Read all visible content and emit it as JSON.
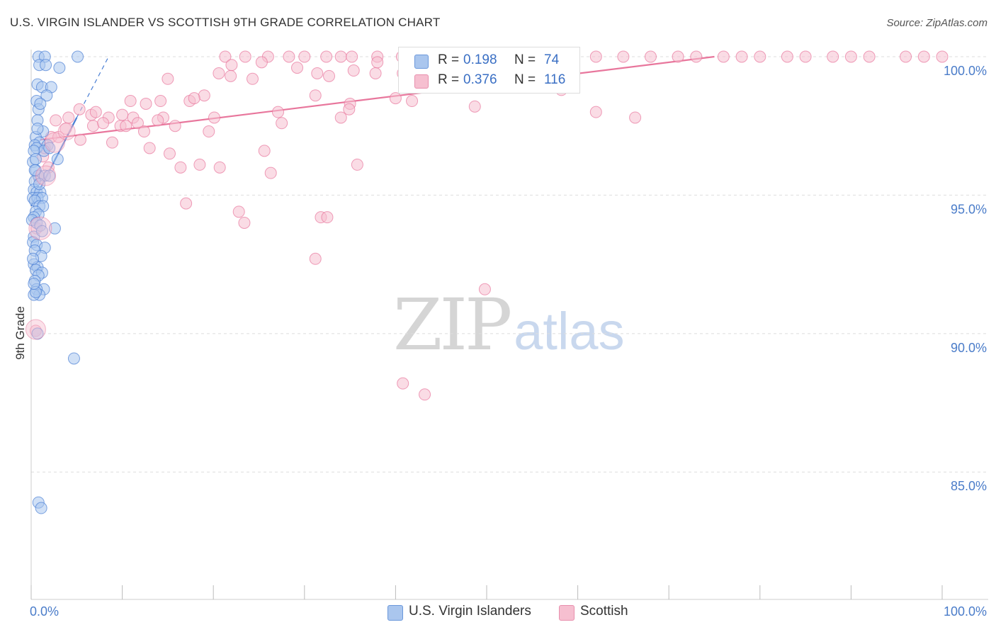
{
  "title": "U.S. VIRGIN ISLANDER VS SCOTTISH 9TH GRADE CORRELATION CHART",
  "source": "Source: ZipAtlas.com",
  "watermark": {
    "part1": "ZIP",
    "part2": "atlas"
  },
  "legend": {
    "series1": {
      "r_label": "R = ",
      "r_value": "0.198",
      "n_label": "N = ",
      "n_value": "74"
    },
    "series2": {
      "r_label": "R = ",
      "r_value": "0.376",
      "n_label": "N = ",
      "n_value": "116"
    }
  },
  "bottom_legend": {
    "series1": "U.S. Virgin Islanders",
    "series2": "Scottish"
  },
  "colors": {
    "blue": "#4a7fd4",
    "blue_fill": "#aac6ee",
    "pink": "#e8769c",
    "pink_fill": "#f6bfd0",
    "grid": "#dddddd",
    "tick": "#4a7cc9"
  },
  "chart_data": {
    "type": "scatter",
    "title": "U.S. VIRGIN ISLANDER VS SCOTTISH 9TH GRADE CORRELATION CHART",
    "xlabel": "",
    "ylabel": "9th Grade",
    "xlim": [
      0,
      100
    ],
    "ylim": [
      80.5,
      100.5
    ],
    "x_tick_labels": [
      "0.0%",
      "100.0%"
    ],
    "y_ticks": [
      85,
      90,
      95,
      100
    ],
    "y_tick_labels": [
      "85.0%",
      "90.0%",
      "95.0%",
      "100.0%"
    ],
    "grid": true,
    "series": [
      {
        "name": "U.S. Virgin Islanders",
        "r": 0.198,
        "n": 74,
        "trend": {
          "x": [
            0.0,
            5.0
          ],
          "y": [
            94.6,
            97.8
          ]
        },
        "trend_ext": {
          "x": [
            5.0,
            8.5
          ],
          "y": [
            97.8,
            100.0
          ]
        },
        "points": [
          [
            0.8,
            100
          ],
          [
            1.5,
            100
          ],
          [
            5.1,
            100
          ],
          [
            0.9,
            99.7
          ],
          [
            1.6,
            99.7
          ],
          [
            3.1,
            99.6
          ],
          [
            0.7,
            99
          ],
          [
            1.2,
            98.9
          ],
          [
            2.2,
            98.9
          ],
          [
            1.7,
            98.6
          ],
          [
            0.6,
            98.4
          ],
          [
            0.8,
            98.1
          ],
          [
            0.7,
            97.7
          ],
          [
            1.3,
            97.3
          ],
          [
            0.5,
            97.1
          ],
          [
            0.9,
            96.9
          ],
          [
            1.8,
            96.8
          ],
          [
            0.4,
            96.8
          ],
          [
            0.6,
            96.7
          ],
          [
            1.4,
            96.6
          ],
          [
            2.0,
            96.7
          ],
          [
            0.3,
            96.6
          ],
          [
            2.9,
            96.3
          ],
          [
            0.2,
            96.2
          ],
          [
            0.5,
            95.9
          ],
          [
            0.8,
            95.7
          ],
          [
            1.5,
            95.7
          ],
          [
            2.0,
            95.7
          ],
          [
            0.4,
            95.5
          ],
          [
            0.3,
            95.2
          ],
          [
            0.6,
            95.1
          ],
          [
            1.0,
            95.1
          ],
          [
            0.2,
            94.9
          ],
          [
            0.7,
            94.9
          ],
          [
            1.2,
            94.9
          ],
          [
            0.4,
            94.8
          ],
          [
            0.9,
            94.6
          ],
          [
            1.3,
            94.6
          ],
          [
            0.5,
            94.4
          ],
          [
            0.8,
            94.3
          ],
          [
            0.3,
            94.2
          ],
          [
            0.1,
            94.1
          ],
          [
            0.6,
            94
          ],
          [
            1.0,
            93.9
          ],
          [
            2.6,
            93.8
          ],
          [
            0.3,
            93.5
          ],
          [
            0.2,
            93.3
          ],
          [
            0.6,
            93.2
          ],
          [
            1.5,
            93.1
          ],
          [
            0.4,
            93
          ],
          [
            1.1,
            92.8
          ],
          [
            0.3,
            92.5
          ],
          [
            0.7,
            92.4
          ],
          [
            0.5,
            92.3
          ],
          [
            1.2,
            92.2
          ],
          [
            0.8,
            92.1
          ],
          [
            0.4,
            91.9
          ],
          [
            1.4,
            91.6
          ],
          [
            0.6,
            91.6
          ],
          [
            0.9,
            91.4
          ],
          [
            0.3,
            91.4
          ],
          [
            0.5,
            91.5
          ],
          [
            0.7,
            90
          ],
          [
            4.7,
            89.1
          ],
          [
            0.8,
            83.9
          ],
          [
            1.1,
            83.7
          ],
          [
            0.5,
            96.3
          ],
          [
            0.9,
            95.4
          ],
          [
            1.2,
            93.7
          ],
          [
            0.2,
            92.7
          ],
          [
            0.4,
            95.9
          ],
          [
            0.7,
            97.4
          ],
          [
            0.3,
            91.8
          ],
          [
            1.0,
            98.3
          ]
        ]
      },
      {
        "name": "Scottish",
        "r": 0.376,
        "n": 116,
        "trend": {
          "x": [
            1.0,
            75.0
          ],
          "y": [
            97.0,
            100.0
          ]
        },
        "points": [
          [
            21.3,
            100
          ],
          [
            23.5,
            100
          ],
          [
            26.0,
            100
          ],
          [
            28.3,
            100
          ],
          [
            30.0,
            100
          ],
          [
            32.4,
            100
          ],
          [
            34.0,
            100
          ],
          [
            35.2,
            100
          ],
          [
            38.0,
            100
          ],
          [
            40.7,
            100
          ],
          [
            42.0,
            100
          ],
          [
            44.5,
            100
          ],
          [
            46.3,
            100
          ],
          [
            48.3,
            100
          ],
          [
            49.0,
            100
          ],
          [
            50.0,
            100
          ],
          [
            52.0,
            100
          ],
          [
            55.0,
            100
          ],
          [
            57.0,
            100
          ],
          [
            59.0,
            100
          ],
          [
            62.0,
            100
          ],
          [
            65.0,
            100
          ],
          [
            68.0,
            100
          ],
          [
            71.0,
            100
          ],
          [
            73.0,
            100
          ],
          [
            76.0,
            100
          ],
          [
            78.0,
            100
          ],
          [
            80.0,
            100
          ],
          [
            83.0,
            100
          ],
          [
            85.0,
            100
          ],
          [
            88.0,
            100
          ],
          [
            90.0,
            100
          ],
          [
            92.0,
            100
          ],
          [
            96.0,
            100
          ],
          [
            98.0,
            100
          ],
          [
            100,
            100
          ],
          [
            22.0,
            99.7
          ],
          [
            25.3,
            99.8
          ],
          [
            20.6,
            99.4
          ],
          [
            31.4,
            99.4
          ],
          [
            29.2,
            99.6
          ],
          [
            35.4,
            99.5
          ],
          [
            37.8,
            99.4
          ],
          [
            40.8,
            99.4
          ],
          [
            21.9,
            99.3
          ],
          [
            24.3,
            99.2
          ],
          [
            32.7,
            99.3
          ],
          [
            15.0,
            99.2
          ],
          [
            38.0,
            99.8
          ],
          [
            49.1,
            98.9
          ],
          [
            31.2,
            98.6
          ],
          [
            19.0,
            98.6
          ],
          [
            10.9,
            98.4
          ],
          [
            14.2,
            98.4
          ],
          [
            17.4,
            98.4
          ],
          [
            17.9,
            98.5
          ],
          [
            12.6,
            98.3
          ],
          [
            40.0,
            98.5
          ],
          [
            41.8,
            98.4
          ],
          [
            35.0,
            98.3
          ],
          [
            5.3,
            98.1
          ],
          [
            6.6,
            97.9
          ],
          [
            7.1,
            98
          ],
          [
            8.5,
            97.8
          ],
          [
            10.0,
            97.9
          ],
          [
            11.2,
            97.8
          ],
          [
            14.5,
            97.8
          ],
          [
            13.9,
            97.7
          ],
          [
            20.1,
            97.8
          ],
          [
            27.1,
            98
          ],
          [
            34.9,
            98.1
          ],
          [
            48.7,
            98.2
          ],
          [
            58.2,
            98.8
          ],
          [
            62.0,
            98.0
          ],
          [
            66.3,
            97.8
          ],
          [
            4.1,
            97.8
          ],
          [
            2.7,
            97.7
          ],
          [
            3.8,
            97.4
          ],
          [
            6.8,
            97.5
          ],
          [
            7.9,
            97.6
          ],
          [
            9.8,
            97.5
          ],
          [
            10.4,
            97.5
          ],
          [
            11.7,
            97.6
          ],
          [
            12.4,
            97.3
          ],
          [
            15.8,
            97.5
          ],
          [
            19.5,
            97.3
          ],
          [
            27.5,
            97.6
          ],
          [
            34.0,
            97.8
          ],
          [
            2.2,
            97.1
          ],
          [
            5.4,
            97.0
          ],
          [
            8.9,
            96.9
          ],
          [
            13.0,
            96.7
          ],
          [
            15.2,
            96.5
          ],
          [
            16.4,
            96.0
          ],
          [
            18.5,
            96.1
          ],
          [
            20.7,
            96.0
          ],
          [
            25.6,
            96.6
          ],
          [
            26.3,
            95.8
          ],
          [
            35.8,
            96.1
          ],
          [
            1.3,
            96.4
          ],
          [
            1.9,
            96.0
          ],
          [
            0.9,
            95.6
          ],
          [
            17.0,
            94.7
          ],
          [
            22.8,
            94.4
          ],
          [
            23.4,
            94.0
          ],
          [
            31.8,
            94.2
          ],
          [
            32.5,
            94.2
          ],
          [
            31.2,
            92.7
          ],
          [
            49.8,
            91.6
          ],
          [
            40.8,
            88.2
          ],
          [
            43.2,
            87.8
          ],
          [
            0.5,
            90.1
          ],
          [
            0.6,
            93.8
          ],
          [
            0.8,
            95.7
          ],
          [
            1.5,
            96.7
          ],
          [
            3.0,
            97.1
          ]
        ]
      }
    ]
  }
}
